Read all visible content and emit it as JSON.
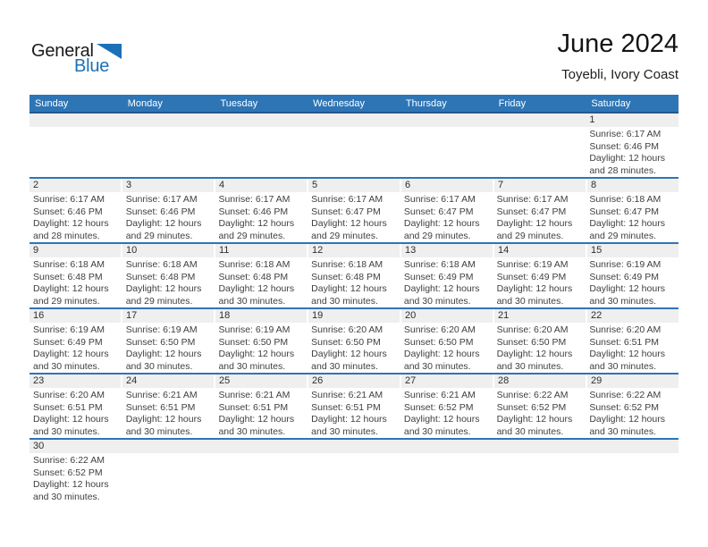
{
  "logo": {
    "word_top": "General",
    "word_bottom": "Blue",
    "triangle_color": "#1c70b8"
  },
  "header": {
    "title": "June 2024",
    "subtitle": "Toyebli, Ivory Coast"
  },
  "weekday_headers": [
    "Sunday",
    "Monday",
    "Tuesday",
    "Wednesday",
    "Thursday",
    "Friday",
    "Saturday"
  ],
  "colors": {
    "header_bar": "#2e75b6",
    "header_text": "#ffffff",
    "number_band": "#efefef",
    "row_separator": "#2e75b6",
    "cell_text": "#3f3f3f"
  },
  "weeks": [
    [
      {
        "day": ""
      },
      {
        "day": ""
      },
      {
        "day": ""
      },
      {
        "day": ""
      },
      {
        "day": ""
      },
      {
        "day": ""
      },
      {
        "day": "1",
        "sunrise": "Sunrise: 6:17 AM",
        "sunset": "Sunset: 6:46 PM",
        "daylight": "Daylight: 12 hours and 28 minutes."
      }
    ],
    [
      {
        "day": "2",
        "sunrise": "Sunrise: 6:17 AM",
        "sunset": "Sunset: 6:46 PM",
        "daylight": "Daylight: 12 hours and 28 minutes."
      },
      {
        "day": "3",
        "sunrise": "Sunrise: 6:17 AM",
        "sunset": "Sunset: 6:46 PM",
        "daylight": "Daylight: 12 hours and 29 minutes."
      },
      {
        "day": "4",
        "sunrise": "Sunrise: 6:17 AM",
        "sunset": "Sunset: 6:46 PM",
        "daylight": "Daylight: 12 hours and 29 minutes."
      },
      {
        "day": "5",
        "sunrise": "Sunrise: 6:17 AM",
        "sunset": "Sunset: 6:47 PM",
        "daylight": "Daylight: 12 hours and 29 minutes."
      },
      {
        "day": "6",
        "sunrise": "Sunrise: 6:17 AM",
        "sunset": "Sunset: 6:47 PM",
        "daylight": "Daylight: 12 hours and 29 minutes."
      },
      {
        "day": "7",
        "sunrise": "Sunrise: 6:17 AM",
        "sunset": "Sunset: 6:47 PM",
        "daylight": "Daylight: 12 hours and 29 minutes."
      },
      {
        "day": "8",
        "sunrise": "Sunrise: 6:18 AM",
        "sunset": "Sunset: 6:47 PM",
        "daylight": "Daylight: 12 hours and 29 minutes."
      }
    ],
    [
      {
        "day": "9",
        "sunrise": "Sunrise: 6:18 AM",
        "sunset": "Sunset: 6:48 PM",
        "daylight": "Daylight: 12 hours and 29 minutes."
      },
      {
        "day": "10",
        "sunrise": "Sunrise: 6:18 AM",
        "sunset": "Sunset: 6:48 PM",
        "daylight": "Daylight: 12 hours and 29 minutes."
      },
      {
        "day": "11",
        "sunrise": "Sunrise: 6:18 AM",
        "sunset": "Sunset: 6:48 PM",
        "daylight": "Daylight: 12 hours and 30 minutes."
      },
      {
        "day": "12",
        "sunrise": "Sunrise: 6:18 AM",
        "sunset": "Sunset: 6:48 PM",
        "daylight": "Daylight: 12 hours and 30 minutes."
      },
      {
        "day": "13",
        "sunrise": "Sunrise: 6:18 AM",
        "sunset": "Sunset: 6:49 PM",
        "daylight": "Daylight: 12 hours and 30 minutes."
      },
      {
        "day": "14",
        "sunrise": "Sunrise: 6:19 AM",
        "sunset": "Sunset: 6:49 PM",
        "daylight": "Daylight: 12 hours and 30 minutes."
      },
      {
        "day": "15",
        "sunrise": "Sunrise: 6:19 AM",
        "sunset": "Sunset: 6:49 PM",
        "daylight": "Daylight: 12 hours and 30 minutes."
      }
    ],
    [
      {
        "day": "16",
        "sunrise": "Sunrise: 6:19 AM",
        "sunset": "Sunset: 6:49 PM",
        "daylight": "Daylight: 12 hours and 30 minutes."
      },
      {
        "day": "17",
        "sunrise": "Sunrise: 6:19 AM",
        "sunset": "Sunset: 6:50 PM",
        "daylight": "Daylight: 12 hours and 30 minutes."
      },
      {
        "day": "18",
        "sunrise": "Sunrise: 6:19 AM",
        "sunset": "Sunset: 6:50 PM",
        "daylight": "Daylight: 12 hours and 30 minutes."
      },
      {
        "day": "19",
        "sunrise": "Sunrise: 6:20 AM",
        "sunset": "Sunset: 6:50 PM",
        "daylight": "Daylight: 12 hours and 30 minutes."
      },
      {
        "day": "20",
        "sunrise": "Sunrise: 6:20 AM",
        "sunset": "Sunset: 6:50 PM",
        "daylight": "Daylight: 12 hours and 30 minutes."
      },
      {
        "day": "21",
        "sunrise": "Sunrise: 6:20 AM",
        "sunset": "Sunset: 6:50 PM",
        "daylight": "Daylight: 12 hours and 30 minutes."
      },
      {
        "day": "22",
        "sunrise": "Sunrise: 6:20 AM",
        "sunset": "Sunset: 6:51 PM",
        "daylight": "Daylight: 12 hours and 30 minutes."
      }
    ],
    [
      {
        "day": "23",
        "sunrise": "Sunrise: 6:20 AM",
        "sunset": "Sunset: 6:51 PM",
        "daylight": "Daylight: 12 hours and 30 minutes."
      },
      {
        "day": "24",
        "sunrise": "Sunrise: 6:21 AM",
        "sunset": "Sunset: 6:51 PM",
        "daylight": "Daylight: 12 hours and 30 minutes."
      },
      {
        "day": "25",
        "sunrise": "Sunrise: 6:21 AM",
        "sunset": "Sunset: 6:51 PM",
        "daylight": "Daylight: 12 hours and 30 minutes."
      },
      {
        "day": "26",
        "sunrise": "Sunrise: 6:21 AM",
        "sunset": "Sunset: 6:51 PM",
        "daylight": "Daylight: 12 hours and 30 minutes."
      },
      {
        "day": "27",
        "sunrise": "Sunrise: 6:21 AM",
        "sunset": "Sunset: 6:52 PM",
        "daylight": "Daylight: 12 hours and 30 minutes."
      },
      {
        "day": "28",
        "sunrise": "Sunrise: 6:22 AM",
        "sunset": "Sunset: 6:52 PM",
        "daylight": "Daylight: 12 hours and 30 minutes."
      },
      {
        "day": "29",
        "sunrise": "Sunrise: 6:22 AM",
        "sunset": "Sunset: 6:52 PM",
        "daylight": "Daylight: 12 hours and 30 minutes."
      }
    ],
    [
      {
        "day": "30",
        "sunrise": "Sunrise: 6:22 AM",
        "sunset": "Sunset: 6:52 PM",
        "daylight": "Daylight: 12 hours and 30 minutes."
      },
      {
        "day": ""
      },
      {
        "day": ""
      },
      {
        "day": ""
      },
      {
        "day": ""
      },
      {
        "day": ""
      },
      {
        "day": ""
      }
    ]
  ]
}
